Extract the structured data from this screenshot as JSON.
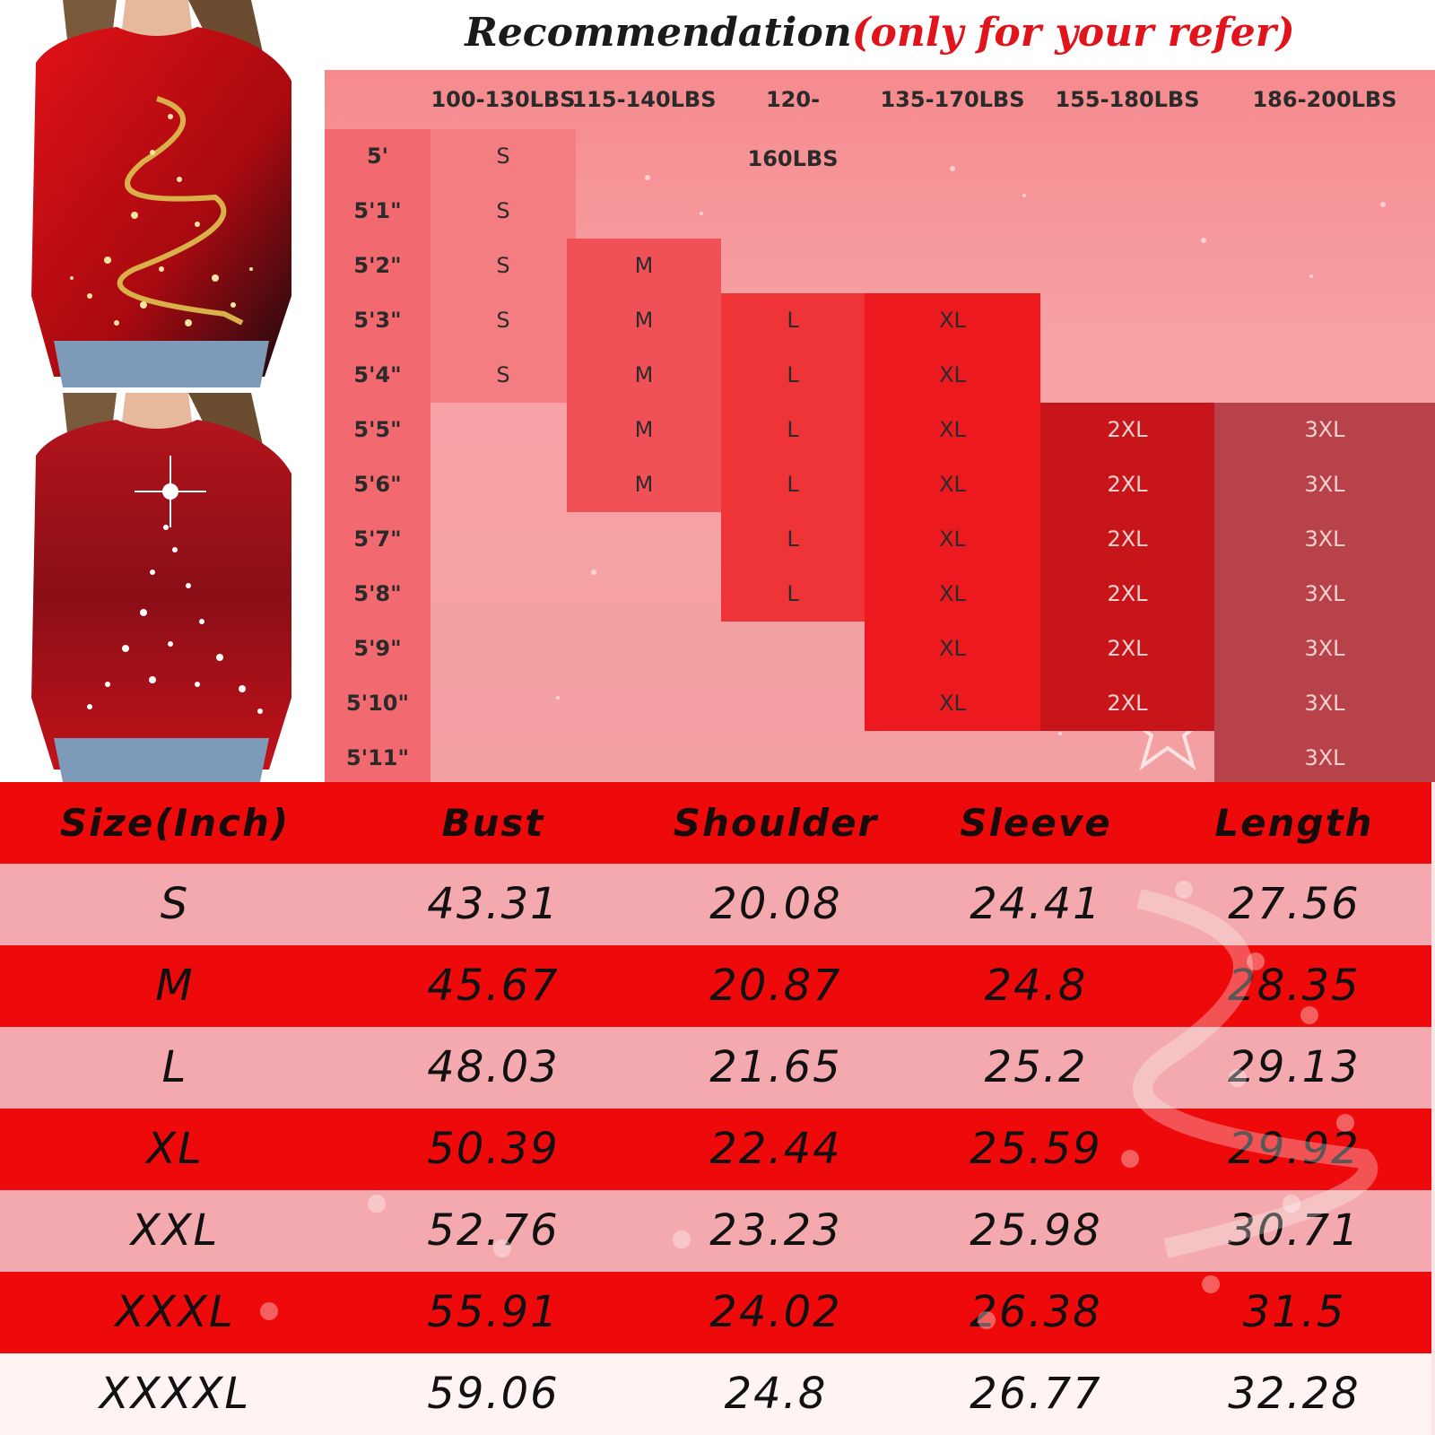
{
  "recommendation": {
    "title_main": "Recommendation",
    "title_note": "(only for your refer)",
    "weight_columns": [
      "100-130LBS",
      "115-140LBS",
      "120-160LBS",
      "135-170LBS",
      "155-180LBS",
      "186-200LBS"
    ],
    "heights": [
      "5'",
      "5'1\"",
      "5'2\"",
      "5'3\"",
      "5'4\"",
      "5'5\"",
      "5'6\"",
      "5'7\"",
      "5'8\"",
      "5'9\"",
      "5'10\"",
      "5'11\""
    ],
    "blocks": [
      {
        "size": "S",
        "column": 0,
        "rows": [
          0,
          1,
          2,
          3,
          4
        ],
        "color": "#f47d82"
      },
      {
        "size": "M",
        "column": 1,
        "rows": [
          2,
          3,
          4,
          5,
          6
        ],
        "color": "#f05157"
      },
      {
        "size": "L",
        "column": 2,
        "rows": [
          3,
          4,
          5,
          6,
          7,
          8
        ],
        "color": "#ef3437"
      },
      {
        "size": "XL",
        "column": 3,
        "rows": [
          3,
          4,
          5,
          6,
          7,
          8,
          9,
          10
        ],
        "color": "#ec1a1f"
      },
      {
        "size": "2XL",
        "column": 4,
        "rows": [
          5,
          6,
          7,
          8,
          9,
          10
        ],
        "color": "#c81519"
      },
      {
        "size": "3XL",
        "column": 5,
        "rows": [
          5,
          6,
          7,
          8,
          9,
          10,
          11
        ],
        "color": "#b74249"
      }
    ]
  },
  "size_table": {
    "headers": [
      "Size(Inch)",
      "Bust",
      "Shoulder",
      "Sleeve",
      "Length"
    ],
    "rows": [
      [
        "S",
        "43.31",
        "20.08",
        "24.41",
        "27.56"
      ],
      [
        "M",
        "45.67",
        "20.87",
        "24.8",
        "28.35"
      ],
      [
        "L",
        "48.03",
        "21.65",
        "25.2",
        "29.13"
      ],
      [
        "XL",
        "50.39",
        "22.44",
        "25.59",
        "29.92"
      ],
      [
        "XXL",
        "52.76",
        "23.23",
        "25.98",
        "30.71"
      ],
      [
        "XXXL",
        "55.91",
        "24.02",
        "26.38",
        "31.5"
      ],
      [
        "XXXXL",
        "59.06",
        "24.8",
        "26.77",
        "32.28"
      ]
    ]
  },
  "colors": {
    "accent_red": "#ee0a0b",
    "pink": "#f3a9ad",
    "title_red": "#e0141a"
  }
}
